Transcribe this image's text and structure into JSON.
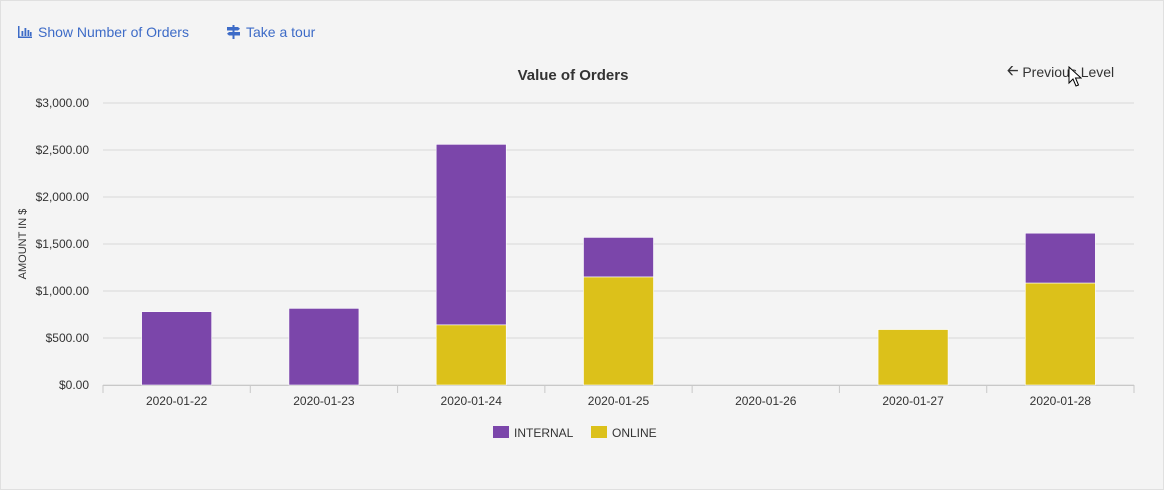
{
  "toolbar": {
    "show_orders_label": "Show Number of Orders",
    "tour_label": "Take a tour",
    "show_orders_icon": "bar-chart-icon",
    "tour_icon": "signpost-icon"
  },
  "navigation": {
    "previous_level_label": "Previous Level",
    "previous_level_icon": "arrow-left-icon"
  },
  "colors": {
    "internal": "#7b46aa",
    "online": "#dcc11a",
    "grid": "#d9d9d9",
    "axis_text": "#333333",
    "link": "#3d6bc7"
  },
  "chart_data": {
    "type": "bar",
    "stacked": true,
    "title": "Value of Orders",
    "xlabel": "",
    "ylabel": "AMOUNT IN $",
    "ylim": [
      0,
      3000
    ],
    "yticks": [
      0,
      500,
      1000,
      1500,
      2000,
      2500,
      3000
    ],
    "ytick_labels": [
      "$0.00",
      "$500.00",
      "$1,000.00",
      "$1,500.00",
      "$2,000.00",
      "$2,500.00",
      "$3,000.00"
    ],
    "categories": [
      "2020-01-22",
      "2020-01-23",
      "2020-01-24",
      "2020-01-25",
      "2020-01-26",
      "2020-01-27",
      "2020-01-28"
    ],
    "series": [
      {
        "name": "ONLINE",
        "values": [
          0,
          0,
          640,
          1150,
          0,
          590,
          1085
        ]
      },
      {
        "name": "INTERNAL",
        "values": [
          780,
          815,
          1920,
          420,
          0,
          0,
          530
        ]
      }
    ],
    "legend": [
      "INTERNAL",
      "ONLINE"
    ],
    "legend_position": "bottom"
  }
}
